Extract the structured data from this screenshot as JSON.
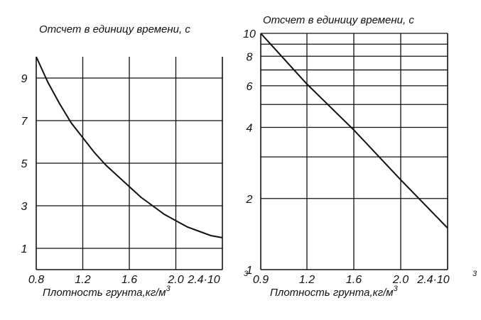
{
  "chart_data": [
    {
      "type": "line",
      "ylabel": "Отсчет в единицу времени, с",
      "xlabel": "Плотность грунта,кг/м",
      "xlabel_sup": "3",
      "x_tick_labels": [
        "0.8",
        "1.2",
        "1.6",
        "2.0",
        "2.4·10"
      ],
      "x_multiplier_sup": "3",
      "xlim": [
        0.8,
        2.4
      ],
      "y_tick_labels": [
        "1",
        "3",
        "5",
        "7",
        "9"
      ],
      "y_tick_values": [
        1,
        3,
        5,
        7,
        9
      ],
      "ylim": [
        0,
        10
      ],
      "y_scale": "linear",
      "grid": true,
      "series": [
        {
          "x": [
            0.8,
            0.9,
            1.0,
            1.1,
            1.2,
            1.3,
            1.4,
            1.5,
            1.6,
            1.7,
            1.8,
            1.9,
            2.0,
            2.1,
            2.2,
            2.3,
            2.4
          ],
          "y": [
            10.0,
            8.8,
            7.8,
            6.9,
            6.2,
            5.5,
            4.9,
            4.4,
            3.9,
            3.4,
            3.0,
            2.6,
            2.3,
            2.0,
            1.8,
            1.6,
            1.5
          ]
        }
      ]
    },
    {
      "type": "line",
      "ylabel": "Отсчет в единицу времени, с",
      "xlabel": "Плотность грунта,кг/м",
      "xlabel_sup": "3",
      "x_tick_labels": [
        "0.9",
        "1.2",
        "1.6",
        "2.0",
        "2.4·10"
      ],
      "x_multiplier_sup": "3",
      "xlim": [
        0.9,
        2.4
      ],
      "y_tick_labels": [
        "1",
        "2",
        "4",
        "6",
        "8",
        "10"
      ],
      "y_tick_values": [
        1,
        2,
        4,
        6,
        8,
        10
      ],
      "ylim": [
        1,
        10
      ],
      "y_scale": "log",
      "grid": true,
      "series": [
        {
          "x": [
            0.9,
            1.2,
            1.6,
            2.0,
            2.4
          ],
          "y": [
            10.0,
            6.1,
            3.9,
            2.4,
            1.5
          ]
        }
      ]
    }
  ]
}
